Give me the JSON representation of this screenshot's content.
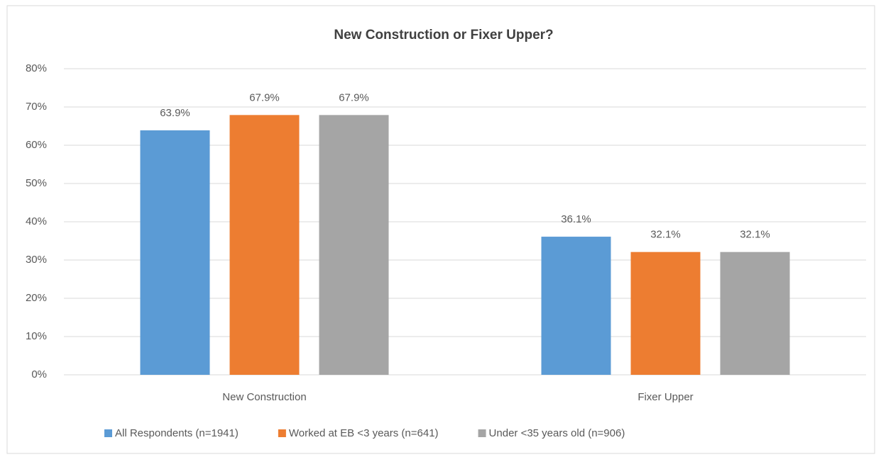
{
  "chart_data": {
    "type": "bar",
    "title": "New Construction or Fixer Upper?",
    "categories": [
      "New Construction",
      "Fixer Upper"
    ],
    "series": [
      {
        "name": "All Respondents (n=1941)",
        "color": "#5b9bd5",
        "values": [
          63.9,
          36.1
        ],
        "value_labels": [
          "63.9%",
          "36.1%"
        ]
      },
      {
        "name": "Worked at EB <3 years (n=641)",
        "color": "#ed7d31",
        "values": [
          67.9,
          32.1
        ],
        "value_labels": [
          "67.9%",
          "32.1%"
        ]
      },
      {
        "name": "Under <35 years old (n=906)",
        "color": "#a5a5a5",
        "values": [
          67.9,
          32.1
        ],
        "value_labels": [
          "67.9%",
          "32.1%"
        ]
      }
    ],
    "ylim": [
      0,
      80
    ],
    "yticks": [
      {
        "value": 0,
        "label": "0%"
      },
      {
        "value": 10,
        "label": "10%"
      },
      {
        "value": 20,
        "label": "20%"
      },
      {
        "value": 30,
        "label": "30%"
      },
      {
        "value": 40,
        "label": "40%"
      },
      {
        "value": 50,
        "label": "50%"
      },
      {
        "value": 60,
        "label": "60%"
      },
      {
        "value": 70,
        "label": "70%"
      },
      {
        "value": 80,
        "label": "80%"
      }
    ],
    "grid": true,
    "legend": "bottom"
  }
}
